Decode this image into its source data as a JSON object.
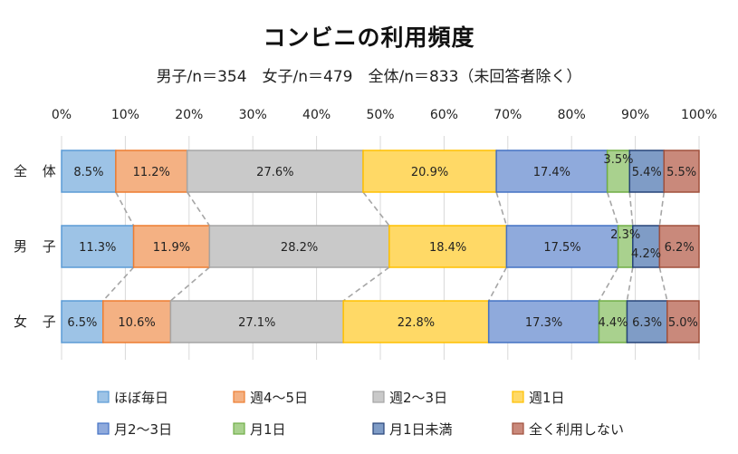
{
  "chart_data": {
    "type": "bar",
    "orientation": "horizontal",
    "stacked": "percent",
    "title": "コンビニの利用頻度",
    "subtitle": "男子/n＝354　女子/n＝479　全体/n＝833（未回答者除く）",
    "categories": [
      "全体",
      "男子",
      "女子"
    ],
    "category_labels": [
      "全 体",
      "男 子",
      "女 子"
    ],
    "xlim": [
      0,
      100
    ],
    "xticks": [
      "0%",
      "10%",
      "20%",
      "30%",
      "40%",
      "50%",
      "60%",
      "70%",
      "80%",
      "90%",
      "100%"
    ],
    "grid": true,
    "legend_position": "bottom",
    "series": [
      {
        "name": "ほぼ毎日",
        "color": "#9DC3E6",
        "border": "#5B9BD5",
        "values": [
          8.5,
          11.3,
          6.5
        ],
        "labels": [
          "8.5%",
          "11.3%",
          "6.5%"
        ]
      },
      {
        "name": "週4～5日",
        "color": "#F4B183",
        "border": "#ED7D31",
        "values": [
          11.2,
          11.9,
          10.6
        ],
        "labels": [
          "11.2%",
          "11.9%",
          "10.6%"
        ]
      },
      {
        "name": "週2～3日",
        "color": "#C9C9C9",
        "border": "#A5A5A5",
        "values": [
          27.6,
          28.2,
          27.1
        ],
        "labels": [
          "27.6%",
          "28.2%",
          "27.1%"
        ]
      },
      {
        "name": "週1日",
        "color": "#FFD966",
        "border": "#FFC000",
        "values": [
          20.9,
          18.4,
          22.8
        ],
        "labels": [
          "20.9%",
          "18.4%",
          "22.8%"
        ]
      },
      {
        "name": "月2～3日",
        "color": "#8FAADC",
        "border": "#4472C4",
        "values": [
          17.4,
          17.5,
          17.3
        ],
        "labels": [
          "17.4%",
          "17.5%",
          "17.3%"
        ]
      },
      {
        "name": "月1日",
        "color": "#A9D18E",
        "border": "#70AD47",
        "values": [
          3.5,
          2.3,
          4.4
        ],
        "labels": [
          "3.5%",
          "2.3%",
          "4.4%"
        ]
      },
      {
        "name": "月1日未満",
        "color": "#7F9CC6",
        "border": "#264478",
        "values": [
          5.4,
          4.2,
          6.3
        ],
        "labels": [
          "5.4%",
          "4.2%",
          "6.3%"
        ]
      },
      {
        "name": "全く利用しない",
        "color": "#C9897B",
        "border": "#A0503C",
        "values": [
          5.5,
          6.2,
          5.0
        ],
        "labels": [
          "5.5%",
          "6.2%",
          "5.0%"
        ]
      }
    ]
  }
}
